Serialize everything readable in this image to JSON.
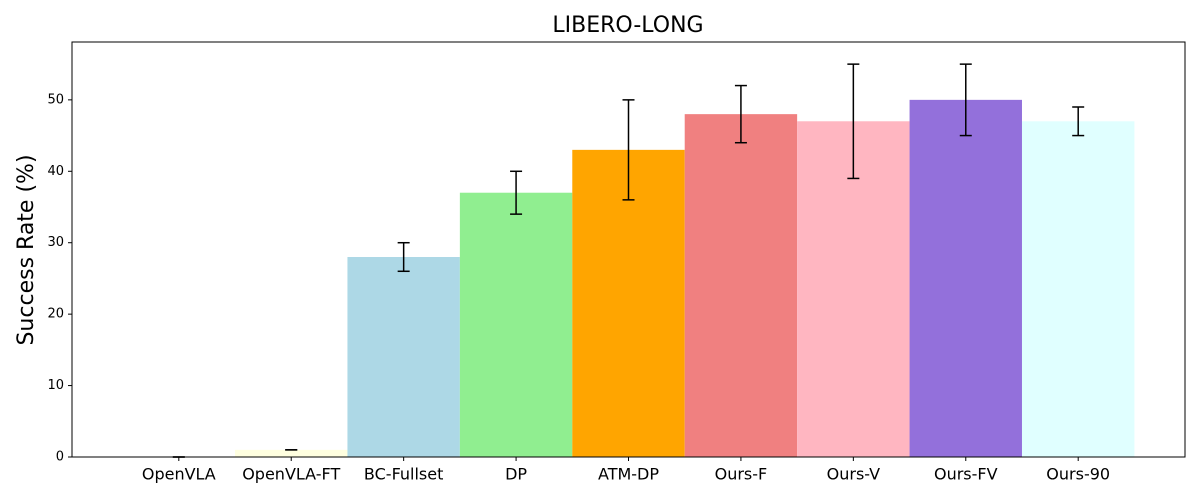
{
  "chart_data": {
    "type": "bar",
    "title": "LIBERO-LONG",
    "y_label": "Success Rate (%)",
    "categories": [
      "OpenVLA",
      "OpenVLA-FT",
      "BC-Fullset",
      "DP",
      "ATM-DP",
      "Ours-F",
      "Ours-V",
      "Ours-FV",
      "Ours-90"
    ],
    "values": [
      0,
      1,
      28,
      37,
      43,
      48,
      47,
      50,
      47
    ],
    "errors": [
      0,
      0,
      2,
      3,
      7,
      4,
      8,
      5,
      2
    ],
    "colors": [
      "#d3d3d3",
      "#ffffe0",
      "#add8e6",
      "#90ee90",
      "#ffa500",
      "#f08080",
      "#ffb6c1",
      "#9370db",
      "#e0ffff"
    ],
    "ylim": [
      0,
      58.1
    ],
    "yticks": [
      0,
      10,
      20,
      30,
      40,
      50
    ],
    "grid": false
  }
}
